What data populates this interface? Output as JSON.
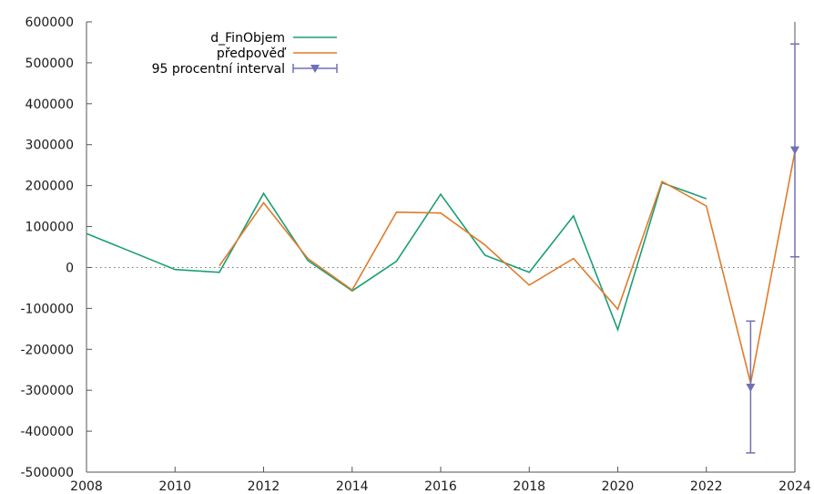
{
  "chart_data": {
    "type": "line",
    "xlim": [
      2008,
      2024
    ],
    "ylim": [
      -500000,
      600000
    ],
    "x_ticks": [
      2008,
      2010,
      2012,
      2014,
      2016,
      2018,
      2020,
      2022,
      2024
    ],
    "y_ticks": [
      -500000,
      -400000,
      -300000,
      -200000,
      -100000,
      0,
      100000,
      200000,
      300000,
      400000,
      500000,
      600000
    ],
    "zero_line": true,
    "legend_position": "top-left",
    "series": [
      {
        "name": "d_FinObjem",
        "color": "#1b9e77",
        "points": [
          [
            2008,
            83000
          ],
          [
            2010,
            -5000
          ],
          [
            2011,
            -12000
          ],
          [
            2012,
            181000
          ],
          [
            2013,
            17000
          ],
          [
            2014,
            -57000
          ],
          [
            2015,
            15000
          ],
          [
            2016,
            179000
          ],
          [
            2017,
            30000
          ],
          [
            2018,
            -12000
          ],
          [
            2019,
            126000
          ],
          [
            2020,
            -152000
          ],
          [
            2021,
            207000
          ],
          [
            2022,
            168000
          ]
        ]
      },
      {
        "name": "předpověď",
        "color": "#e07b2a",
        "points": [
          [
            2011,
            4000
          ],
          [
            2012,
            158000
          ],
          [
            2013,
            22000
          ],
          [
            2014,
            -55000
          ],
          [
            2015,
            135000
          ],
          [
            2016,
            133000
          ],
          [
            2017,
            55000
          ],
          [
            2018,
            -43000
          ],
          [
            2019,
            22000
          ],
          [
            2020,
            -102000
          ],
          [
            2021,
            210000
          ],
          [
            2022,
            150000
          ],
          [
            2023,
            -283000
          ],
          [
            2024,
            283000
          ]
        ]
      }
    ],
    "interval": {
      "name": "95 procentní interval",
      "color": "#7070b8",
      "points": [
        {
          "x": 2023,
          "y": -293000,
          "low": -453000,
          "high": -131000
        },
        {
          "x": 2024,
          "y": 287000,
          "low": 26000,
          "high": 546000
        }
      ]
    }
  }
}
